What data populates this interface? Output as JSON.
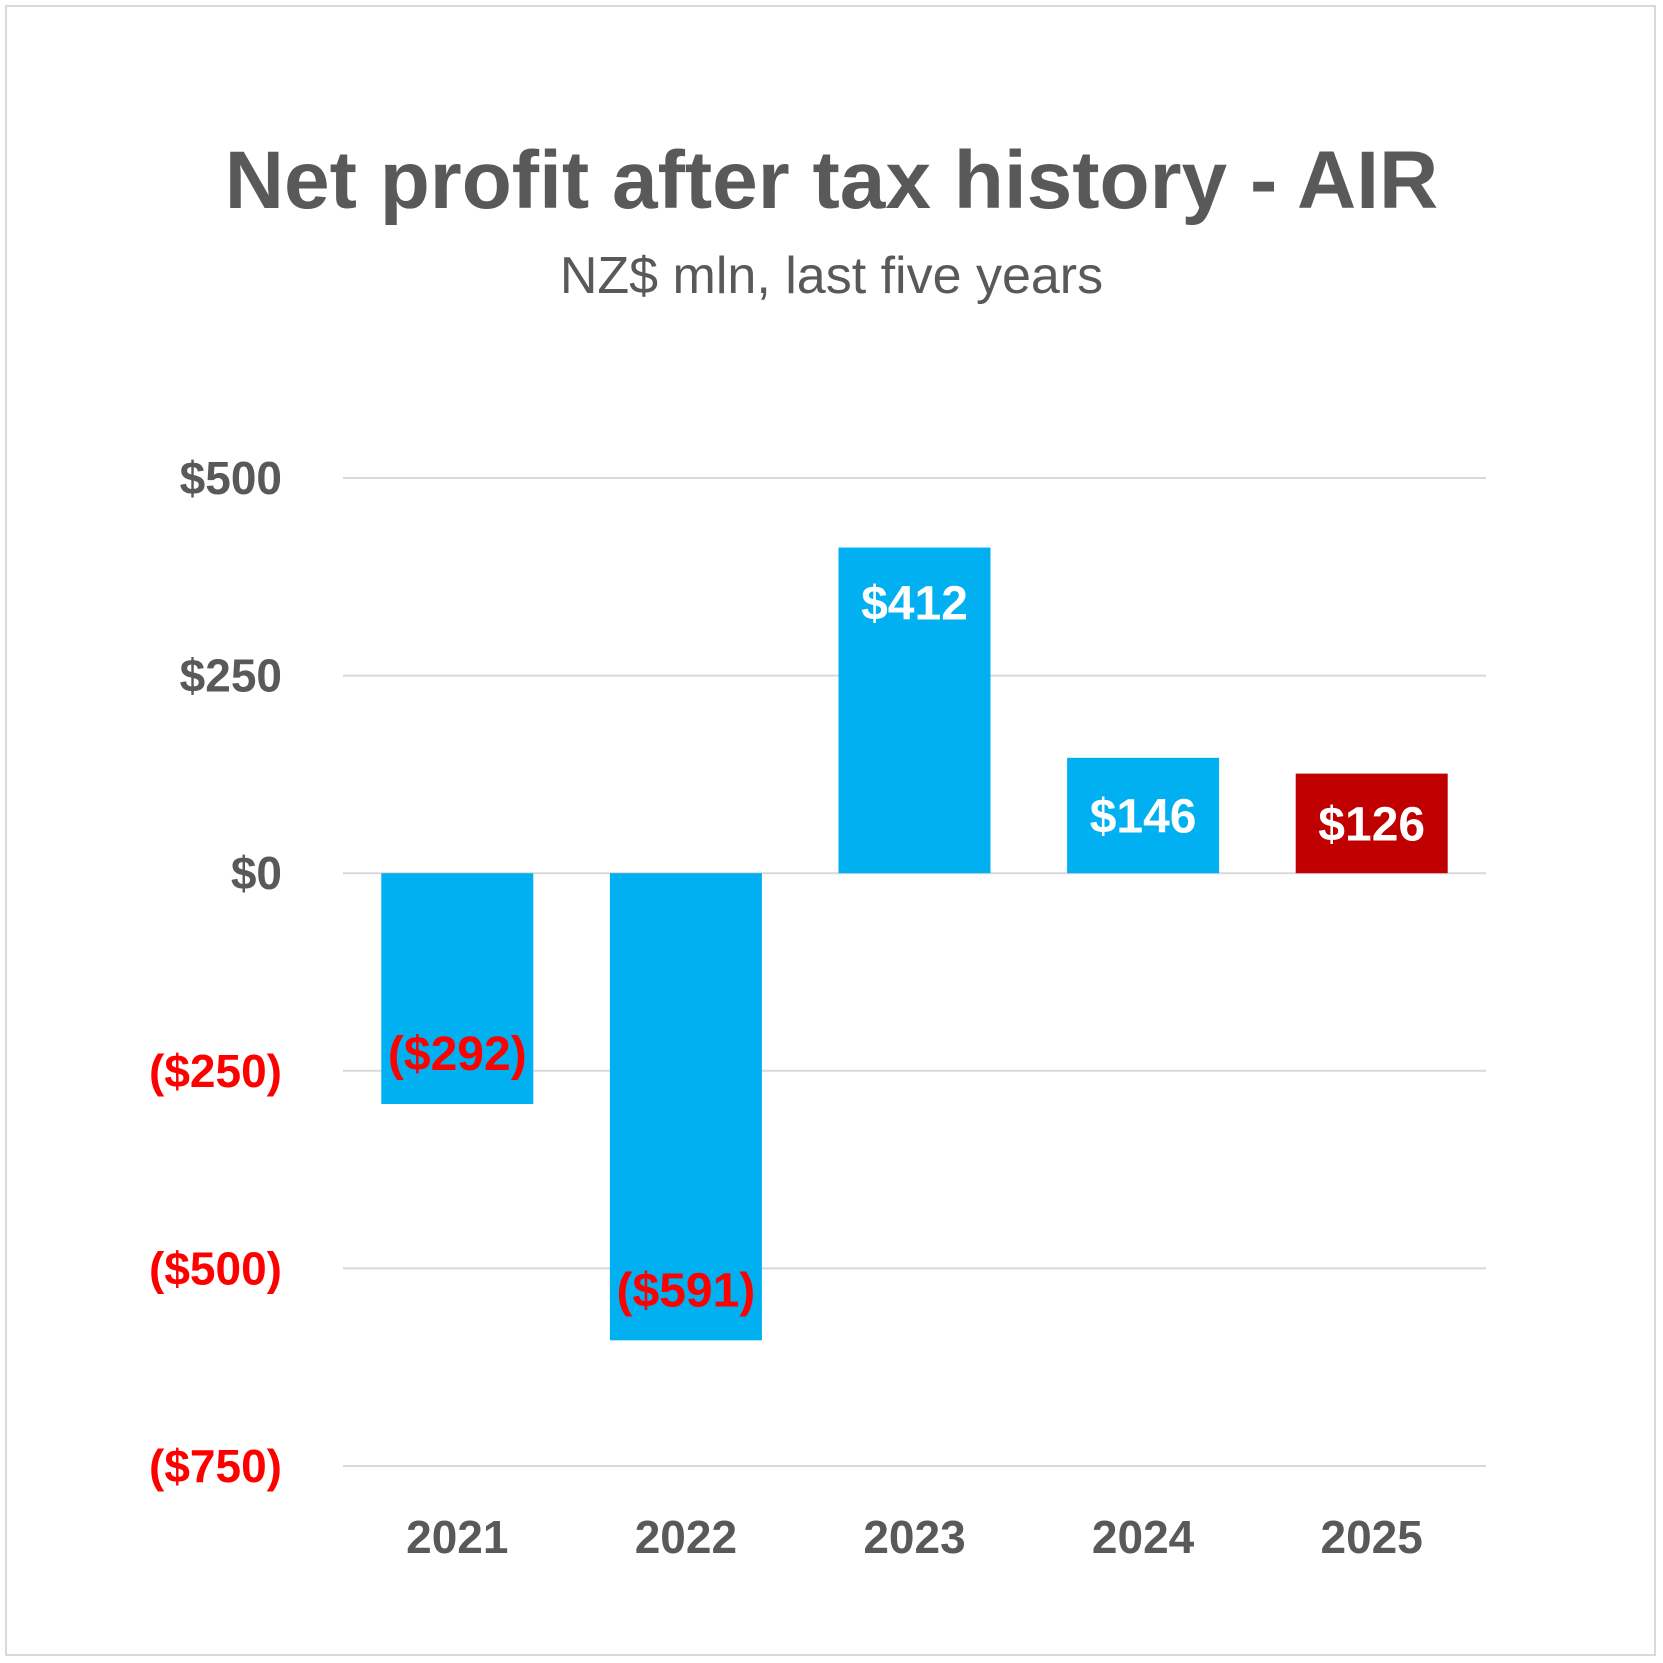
{
  "chart_data": {
    "type": "bar",
    "title": "Net profit after tax history - AIR",
    "subtitle": "NZ$ mln, last five years",
    "xlabel": "",
    "ylabel": "",
    "categories": [
      "2021",
      "2022",
      "2023",
      "2024",
      "2025"
    ],
    "values": [
      -292,
      -591,
      412,
      146,
      126
    ],
    "data_labels": [
      "($292)",
      "($591)",
      "$412",
      "$146",
      "$126"
    ],
    "ylim": [
      -750,
      500
    ],
    "yticks": [
      500,
      250,
      0,
      -250,
      -500,
      -750
    ],
    "ytick_labels": [
      "$500",
      "$250",
      "$0",
      "($250)",
      "($500)",
      "($750)"
    ],
    "grid": true,
    "legend": "none",
    "colors": {
      "bar": "#00b0f0",
      "highlight_bar": "#c00000",
      "positive_label": "#ffffff",
      "negative_label": "#ff0000",
      "axis_text": "#595959",
      "gridline": "#d9d9d9"
    },
    "highlight_index": 4
  }
}
